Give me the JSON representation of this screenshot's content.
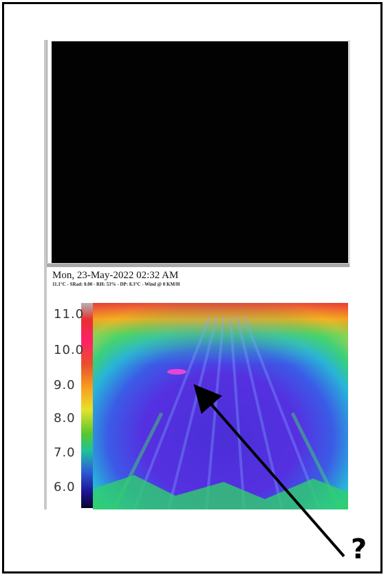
{
  "thermal_view": {
    "timestamp": "Mon, 23-May-2022 02:32 AM",
    "weather_line": "11.1°C - SRad: 0.00 - RH: 53% - DP: 8.3°C - Wind @ 0 KM/H",
    "scale_ticks": [
      "11.0",
      "10.0",
      "9.0",
      "8.0",
      "7.0",
      "6.0"
    ]
  },
  "annotation": {
    "question_mark": "?"
  }
}
